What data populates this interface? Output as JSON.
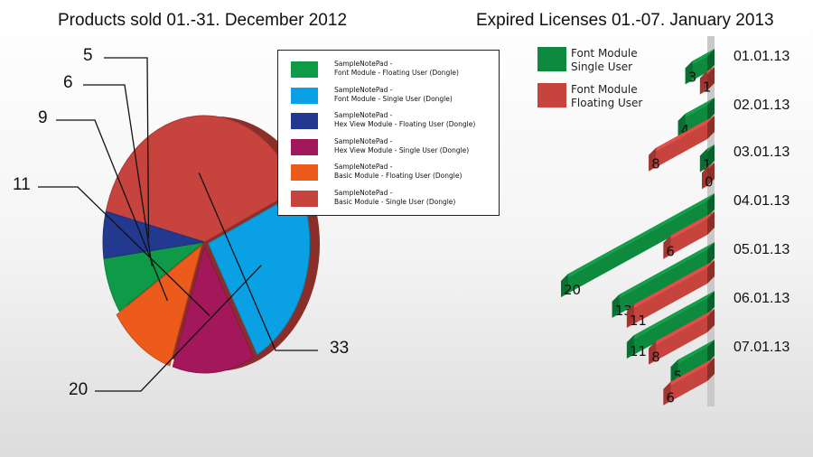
{
  "pie_chart": {
    "title": "Products sold 01.-31. December 2012"
  },
  "bar_chart": {
    "title": "Expired Licenses  01.-07. January 2013"
  },
  "chart_data": [
    {
      "type": "pie",
      "title": "Products sold 01.-31. December 2012",
      "legend_position": "right",
      "slices": [
        {
          "label": "SampleNotePad - Font Module - Floating User (Dongle)",
          "label_line1": "SampleNotePad -",
          "label_line2": "Font Module - Floating User (Dongle)",
          "value": 6,
          "color": "#0e9a47"
        },
        {
          "label": "SampleNotePad - Font Module - Single User (Dongle)",
          "label_line1": "SampleNotePad -",
          "label_line2": "Font Module - Single User (Dongle)",
          "value": 20,
          "color": "#0aa1e4"
        },
        {
          "label": "SampleNotePad - Hex View Module - Floating User (Dongle)",
          "label_line1": "SampleNotePad -",
          "label_line2": "Hex View Module - Floating User (Dongle)",
          "value": 5,
          "color": "#22398f"
        },
        {
          "label": "SampleNotePad - Hex View Module - Single User (Dongle)",
          "label_line1": "SampleNotePad -",
          "label_line2": "Hex View Module - Single User (Dongle)",
          "value": 11,
          "color": "#a3175b"
        },
        {
          "label": "SampleNotePad - Basic Module - Floating User (Dongle)",
          "label_line1": "SampleNotePad -",
          "label_line2": "Basic Module - Floating User (Dongle)",
          "value": 9,
          "color": "#ec5b1c"
        },
        {
          "label": "SampleNotePad - Basic Module - Single User (Dongle)",
          "label_line1": "SampleNotePad -",
          "label_line2": "Basic Module - Single User (Dongle)",
          "value": 33,
          "color": "#c6433e"
        }
      ]
    },
    {
      "type": "bar",
      "orientation": "horizontal",
      "style": "3d",
      "title": "Expired Licenses  01.-07. January 2013",
      "legend_position": "top-left",
      "categories": [
        "01.01.13",
        "02.01.13",
        "03.01.13",
        "04.01.13",
        "05.01.13",
        "06.01.13",
        "07.01.13"
      ],
      "series": [
        {
          "name": "Font Module Single User",
          "name_line1": "Font Module",
          "name_line2": "Single User",
          "color": "#0e8a3e",
          "values": [
            3,
            4,
            1,
            20,
            13,
            11,
            5
          ]
        },
        {
          "name": "Font Module Floating User",
          "name_line1": "Font Module",
          "name_line2": "Floating User",
          "color": "#c6433e",
          "values": [
            1,
            8,
            0,
            6,
            11,
            8,
            6
          ]
        }
      ]
    }
  ]
}
